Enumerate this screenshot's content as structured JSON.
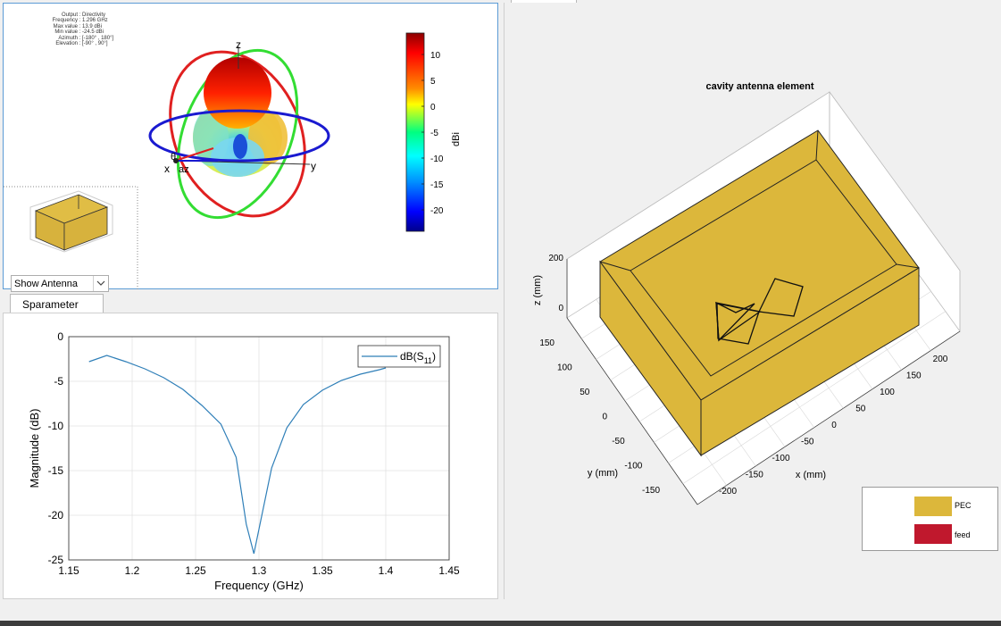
{
  "pattern_panel": {
    "info": [
      {
        "key": "Output :",
        "value": "Directivity"
      },
      {
        "key": "Frequency :",
        "value": "1.296 GHz"
      },
      {
        "key": "Max value :",
        "value": "13.9 dBi"
      },
      {
        "key": "Min value :",
        "value": "-24.5 dBi"
      },
      {
        "key": "Azimuth :",
        "value": "[-180° , 180°]"
      },
      {
        "key": "Elevation :",
        "value": "[-90° , 90°]"
      }
    ],
    "axis_labels": {
      "z": "z",
      "x": "x",
      "y": "y",
      "theta": "θ",
      "az": "az"
    },
    "colorbar": {
      "ticks": [
        "10",
        "5",
        "0",
        "-5",
        "-10",
        "-15",
        "-20"
      ],
      "label": "dBi",
      "colors": [
        "#8b0000",
        "#ff0000",
        "#ffff00",
        "#00ff80",
        "#00bfff",
        "#0000ff",
        "#00008b"
      ]
    },
    "dropdown_value": "Show Antenna"
  },
  "sparameter_panel": {
    "tab_label": "Sparameter",
    "xlabel": "Frequency (GHz)",
    "ylabel": "Magnitude (dB)",
    "legend": "dB(S11)",
    "xticks": [
      "1.15",
      "1.2",
      "1.25",
      "1.3",
      "1.35",
      "1.4",
      "1.45"
    ],
    "yticks": [
      "0",
      "-5",
      "-10",
      "-15",
      "-20",
      "-25"
    ]
  },
  "chart_data": {
    "type": "line",
    "title": "",
    "xlabel": "Frequency (GHz)",
    "ylabel": "Magnitude (dB)",
    "xlim": [
      1.15,
      1.45
    ],
    "ylim": [
      -25,
      0
    ],
    "grid": true,
    "legend_position": "top-right",
    "series": [
      {
        "name": "dB(S11)",
        "color": "#2f7fb8",
        "x": [
          1.166,
          1.18,
          1.195,
          1.21,
          1.225,
          1.24,
          1.255,
          1.27,
          1.282,
          1.29,
          1.296,
          1.31,
          1.322,
          1.335,
          1.35,
          1.365,
          1.38,
          1.395,
          1.4
        ],
        "y": [
          -2.8,
          -2.1,
          -2.8,
          -3.6,
          -4.6,
          -5.9,
          -7.7,
          -9.8,
          -13.5,
          -21.0,
          -24.3,
          -14.7,
          -10.2,
          -7.6,
          -6.0,
          -4.9,
          -4.2,
          -3.7,
          -3.5
        ]
      }
    ]
  },
  "antenna_panel": {
    "title": "cavity antenna element",
    "xlabel": "x (mm)",
    "ylabel": "y (mm)",
    "zlabel": "z (mm)",
    "zticks": [
      "200",
      "0"
    ],
    "yticks": [
      "150",
      "100",
      "50",
      "0",
      "-50",
      "-100",
      "-150"
    ],
    "xticks": [
      "-200",
      "-150",
      "-100",
      "-50",
      "0",
      "50",
      "100",
      "150",
      "200"
    ],
    "legend": [
      {
        "label": "PEC",
        "color": "#dcb73b"
      },
      {
        "label": "feed",
        "color": "#c0182d"
      }
    ],
    "box_color": "#dcb73b"
  }
}
